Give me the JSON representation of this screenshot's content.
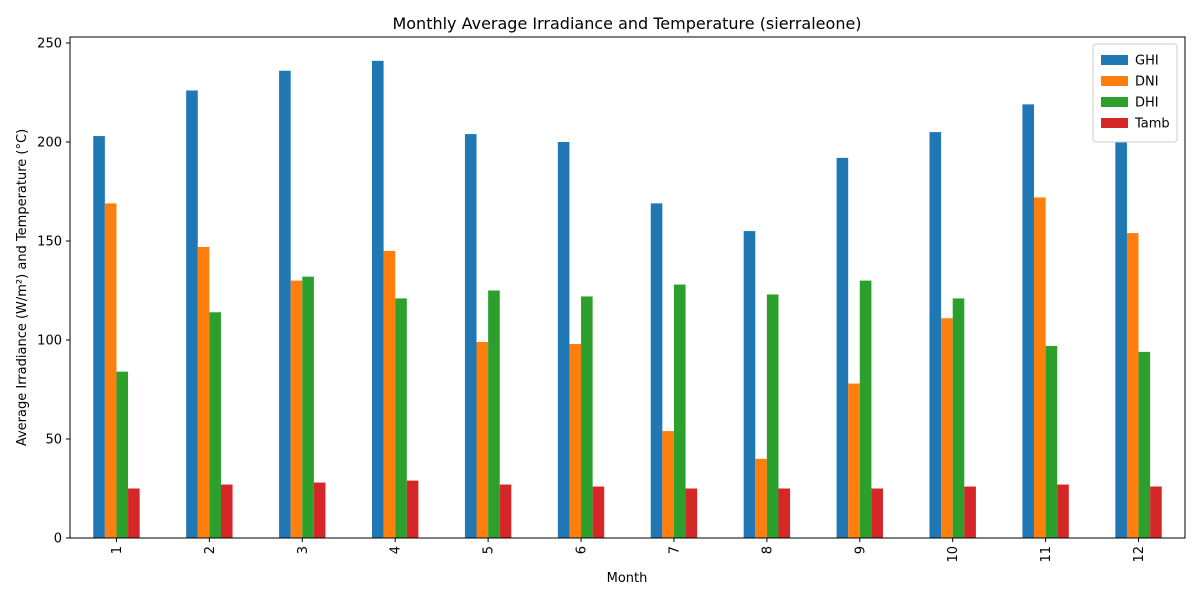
{
  "chart_data": {
    "type": "bar",
    "title": "Monthly Average Irradiance and Temperature (sierraleone)",
    "xlabel": "Month",
    "ylabel": "Average Irradiance (W/m²) and Temperature (°C)",
    "categories": [
      "1",
      "2",
      "3",
      "4",
      "5",
      "6",
      "7",
      "8",
      "9",
      "10",
      "11",
      "12"
    ],
    "ylim": [
      0,
      250
    ],
    "yticks": [
      0,
      50,
      100,
      150,
      200,
      250
    ],
    "legend_position": "top-right",
    "grid": false,
    "series": [
      {
        "name": "GHI",
        "color": "#1f77b4",
        "values": [
          203,
          226,
          236,
          241,
          204,
          200,
          169,
          155,
          192,
          205,
          219,
          200
        ]
      },
      {
        "name": "DNI",
        "color": "#ff7f0e",
        "values": [
          169,
          147,
          130,
          145,
          99,
          98,
          54,
          40,
          78,
          111,
          172,
          154
        ]
      },
      {
        "name": "DHI",
        "color": "#2ca02c",
        "values": [
          84,
          114,
          132,
          121,
          125,
          122,
          128,
          123,
          130,
          121,
          97,
          94
        ]
      },
      {
        "name": "Tamb",
        "color": "#d62728",
        "values": [
          25,
          27,
          28,
          29,
          27,
          26,
          25,
          25,
          25,
          26,
          27,
          26
        ]
      }
    ]
  }
}
